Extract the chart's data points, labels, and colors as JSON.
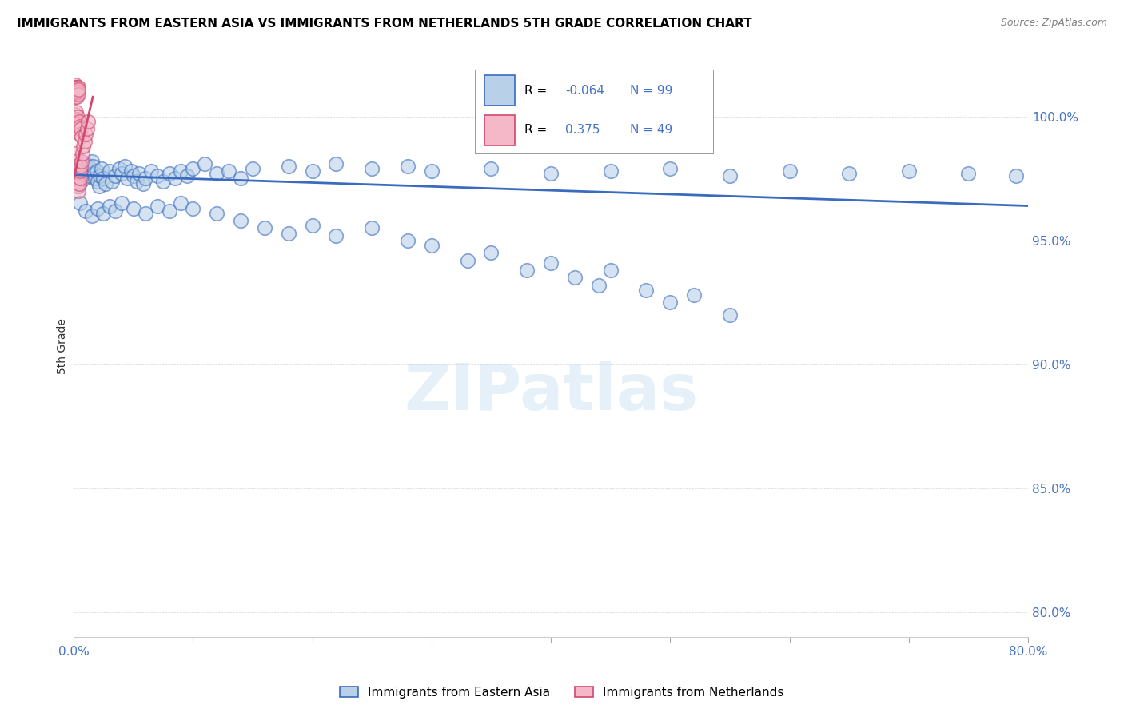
{
  "title": "IMMIGRANTS FROM EASTERN ASIA VS IMMIGRANTS FROM NETHERLANDS 5TH GRADE CORRELATION CHART",
  "source": "Source: ZipAtlas.com",
  "ylabel": "5th Grade",
  "y_ticks": [
    80.0,
    85.0,
    90.0,
    95.0,
    100.0
  ],
  "x_range": [
    0.0,
    80.0
  ],
  "y_range": [
    79.0,
    102.5
  ],
  "legend_blue_label": "Immigrants from Eastern Asia",
  "legend_pink_label": "Immigrants from Netherlands",
  "R_blue": -0.064,
  "N_blue": 99,
  "R_pink": 0.375,
  "N_pink": 49,
  "blue_color": "#b8d0e8",
  "pink_color": "#f4b8c8",
  "blue_line_color": "#3a6bbf",
  "pink_line_color": "#d04870",
  "watermark": "ZIPatlas",
  "blue_scatter": [
    [
      0.2,
      97.3
    ],
    [
      0.3,
      97.5
    ],
    [
      0.4,
      97.2
    ],
    [
      0.5,
      97.6
    ],
    [
      0.6,
      97.4
    ],
    [
      0.7,
      97.7
    ],
    [
      0.8,
      97.9
    ],
    [
      0.9,
      97.5
    ],
    [
      1.0,
      98.1
    ],
    [
      1.1,
      97.8
    ],
    [
      1.2,
      98.0
    ],
    [
      1.3,
      97.6
    ],
    [
      1.4,
      97.9
    ],
    [
      1.5,
      98.2
    ],
    [
      1.6,
      98.0
    ],
    [
      1.7,
      97.7
    ],
    [
      1.8,
      97.5
    ],
    [
      1.9,
      97.8
    ],
    [
      2.0,
      97.4
    ],
    [
      2.1,
      97.2
    ],
    [
      2.2,
      97.6
    ],
    [
      2.3,
      97.9
    ],
    [
      2.5,
      97.5
    ],
    [
      2.7,
      97.3
    ],
    [
      3.0,
      97.8
    ],
    [
      3.2,
      97.4
    ],
    [
      3.5,
      97.6
    ],
    [
      3.8,
      97.9
    ],
    [
      4.0,
      97.7
    ],
    [
      4.3,
      98.0
    ],
    [
      4.5,
      97.5
    ],
    [
      4.8,
      97.8
    ],
    [
      5.0,
      97.6
    ],
    [
      5.3,
      97.4
    ],
    [
      5.5,
      97.7
    ],
    [
      5.8,
      97.3
    ],
    [
      6.0,
      97.5
    ],
    [
      6.5,
      97.8
    ],
    [
      7.0,
      97.6
    ],
    [
      7.5,
      97.4
    ],
    [
      8.0,
      97.7
    ],
    [
      8.5,
      97.5
    ],
    [
      9.0,
      97.8
    ],
    [
      9.5,
      97.6
    ],
    [
      10.0,
      97.9
    ],
    [
      11.0,
      98.1
    ],
    [
      12.0,
      97.7
    ],
    [
      13.0,
      97.8
    ],
    [
      14.0,
      97.5
    ],
    [
      15.0,
      97.9
    ],
    [
      18.0,
      98.0
    ],
    [
      20.0,
      97.8
    ],
    [
      22.0,
      98.1
    ],
    [
      25.0,
      97.9
    ],
    [
      28.0,
      98.0
    ],
    [
      30.0,
      97.8
    ],
    [
      35.0,
      97.9
    ],
    [
      40.0,
      97.7
    ],
    [
      45.0,
      97.8
    ],
    [
      50.0,
      97.9
    ],
    [
      55.0,
      97.6
    ],
    [
      60.0,
      97.8
    ],
    [
      65.0,
      97.7
    ],
    [
      70.0,
      97.8
    ],
    [
      75.0,
      97.7
    ],
    [
      79.0,
      97.6
    ],
    [
      0.5,
      96.5
    ],
    [
      1.0,
      96.2
    ],
    [
      1.5,
      96.0
    ],
    [
      2.0,
      96.3
    ],
    [
      2.5,
      96.1
    ],
    [
      3.0,
      96.4
    ],
    [
      3.5,
      96.2
    ],
    [
      4.0,
      96.5
    ],
    [
      5.0,
      96.3
    ],
    [
      6.0,
      96.1
    ],
    [
      7.0,
      96.4
    ],
    [
      8.0,
      96.2
    ],
    [
      9.0,
      96.5
    ],
    [
      10.0,
      96.3
    ],
    [
      12.0,
      96.1
    ],
    [
      14.0,
      95.8
    ],
    [
      16.0,
      95.5
    ],
    [
      18.0,
      95.3
    ],
    [
      20.0,
      95.6
    ],
    [
      22.0,
      95.2
    ],
    [
      25.0,
      95.5
    ],
    [
      28.0,
      95.0
    ],
    [
      30.0,
      94.8
    ],
    [
      33.0,
      94.2
    ],
    [
      35.0,
      94.5
    ],
    [
      38.0,
      93.8
    ],
    [
      40.0,
      94.1
    ],
    [
      42.0,
      93.5
    ],
    [
      44.0,
      93.2
    ],
    [
      45.0,
      93.8
    ],
    [
      48.0,
      93.0
    ],
    [
      50.0,
      92.5
    ],
    [
      52.0,
      92.8
    ],
    [
      55.0,
      92.0
    ]
  ],
  "pink_scatter": [
    [
      0.05,
      101.2
    ],
    [
      0.08,
      101.0
    ],
    [
      0.1,
      101.3
    ],
    [
      0.12,
      100.8
    ],
    [
      0.14,
      101.1
    ],
    [
      0.16,
      101.2
    ],
    [
      0.18,
      100.9
    ],
    [
      0.2,
      101.0
    ],
    [
      0.22,
      101.2
    ],
    [
      0.24,
      101.1
    ],
    [
      0.26,
      100.8
    ],
    [
      0.28,
      101.0
    ],
    [
      0.3,
      101.2
    ],
    [
      0.32,
      101.1
    ],
    [
      0.34,
      101.0
    ],
    [
      0.36,
      101.2
    ],
    [
      0.38,
      101.0
    ],
    [
      0.4,
      100.9
    ],
    [
      0.42,
      101.1
    ],
    [
      0.1,
      100.1
    ],
    [
      0.15,
      99.8
    ],
    [
      0.2,
      100.2
    ],
    [
      0.25,
      99.9
    ],
    [
      0.3,
      100.0
    ],
    [
      0.35,
      99.7
    ],
    [
      0.4,
      99.5
    ],
    [
      0.45,
      99.8
    ],
    [
      0.5,
      99.6
    ],
    [
      0.55,
      99.3
    ],
    [
      0.6,
      99.5
    ],
    [
      0.65,
      99.2
    ],
    [
      0.1,
      98.5
    ],
    [
      0.15,
      98.2
    ],
    [
      0.2,
      98.0
    ],
    [
      0.25,
      97.8
    ],
    [
      0.3,
      97.5
    ],
    [
      0.35,
      97.2
    ],
    [
      0.4,
      97.0
    ],
    [
      0.45,
      97.3
    ],
    [
      0.5,
      97.5
    ],
    [
      0.55,
      97.8
    ],
    [
      0.6,
      98.0
    ],
    [
      0.65,
      98.2
    ],
    [
      0.7,
      98.5
    ],
    [
      0.8,
      98.8
    ],
    [
      0.9,
      99.0
    ],
    [
      1.0,
      99.3
    ],
    [
      1.1,
      99.5
    ],
    [
      1.2,
      99.8
    ]
  ],
  "blue_regression": [
    0.0,
    97.65,
    80.0,
    96.4
  ],
  "pink_regression": [
    0.0,
    97.5,
    1.6,
    100.8
  ]
}
